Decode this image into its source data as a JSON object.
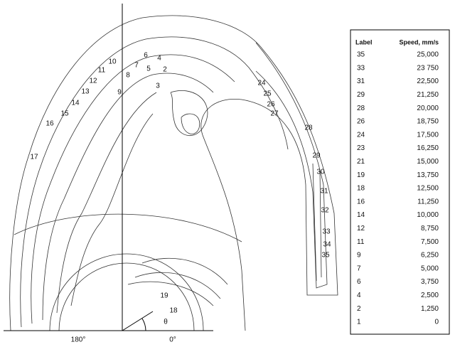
{
  "figure": {
    "contour_labels": [
      "2",
      "3",
      "4",
      "5",
      "6",
      "7",
      "8",
      "9",
      "10",
      "11",
      "12",
      "13",
      "14",
      "15",
      "16",
      "17",
      "18",
      "19",
      "24",
      "25",
      "26",
      "27",
      "28",
      "29",
      "30",
      "31",
      "32",
      "33",
      "34",
      "35"
    ],
    "angle_labels": [
      "180°",
      "0°"
    ],
    "theta": "θ"
  },
  "table": {
    "headers": [
      "Label",
      "Speed, mm/s"
    ],
    "rows": [
      [
        "35",
        "25,000"
      ],
      [
        "33",
        "23 750"
      ],
      [
        "31",
        "22,500"
      ],
      [
        "29",
        "21,250"
      ],
      [
        "28",
        "20,000"
      ],
      [
        "26",
        "18,750"
      ],
      [
        "24",
        "17,500"
      ],
      [
        "23",
        "16,250"
      ],
      [
        "21",
        "15,000"
      ],
      [
        "19",
        "13,750"
      ],
      [
        "18",
        "12,500"
      ],
      [
        "16",
        "11,250"
      ],
      [
        "14",
        "10,000"
      ],
      [
        "12",
        "8,750"
      ],
      [
        "11",
        "7,500"
      ],
      [
        "9",
        "6,250"
      ],
      [
        "7",
        "5,000"
      ],
      [
        "6",
        "3,750"
      ],
      [
        "4",
        "2,500"
      ],
      [
        "2",
        "1,250"
      ],
      [
        "1",
        "0"
      ]
    ]
  }
}
